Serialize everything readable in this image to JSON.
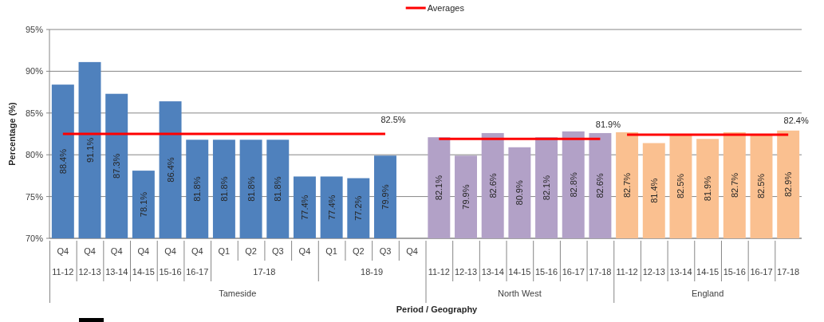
{
  "chart_data": {
    "type": "bar",
    "ylabel": "Percentage (%)",
    "annotations": [
      "Period / Geography"
    ],
    "categories": [
      [
        "Q4",
        "11-12",
        "Tameside"
      ],
      [
        "Q4",
        "12-13",
        null
      ],
      [
        "Q4",
        "13-14",
        null
      ],
      [
        "Q4",
        "14-15",
        null
      ],
      [
        "Q4",
        "15-16",
        null
      ],
      [
        "Q4",
        "16-17",
        null
      ],
      [
        "Q1",
        "17-18",
        null
      ],
      [
        "Q2",
        null,
        null
      ],
      [
        "Q3",
        null,
        null
      ],
      [
        "Q4",
        null,
        null
      ],
      [
        "Q1",
        "18-19",
        null
      ],
      [
        "Q2",
        null,
        null
      ],
      [
        "Q3",
        null,
        null
      ],
      [
        "Q4",
        null,
        null
      ],
      [
        null,
        "11-12",
        "North West"
      ],
      [
        null,
        "12-13",
        null
      ],
      [
        null,
        "13-14",
        null
      ],
      [
        null,
        "14-15",
        null
      ],
      [
        null,
        "15-16",
        null
      ],
      [
        null,
        "16-17",
        null
      ],
      [
        null,
        "17-18",
        null
      ],
      [
        null,
        "11-12",
        "England"
      ],
      [
        null,
        "12-13",
        null
      ],
      [
        null,
        "13-14",
        null
      ],
      [
        null,
        "14-15",
        null
      ],
      [
        null,
        "15-16",
        null
      ],
      [
        null,
        "16-17",
        null
      ],
      [
        null,
        "17-18",
        null
      ]
    ],
    "series": [
      {
        "colors": [
          "#4f81bd",
          "#4f81bd",
          "#4f81bd",
          "#4f81bd",
          "#4f81bd",
          "#4f81bd",
          "#4f81bd",
          "#4f81bd",
          "#4f81bd",
          "#4f81bd",
          "#4f81bd",
          "#4f81bd",
          "#4f81bd",
          null,
          "#b2a1c7",
          "#b2a1c7",
          "#b2a1c7",
          "#b2a1c7",
          "#b2a1c7",
          "#b2a1c7",
          "#b2a1c7",
          "#fac090",
          "#fac090",
          "#fac090",
          "#fac090",
          "#fac090",
          "#fac090",
          "#fac090"
        ],
        "values": [
          88.4,
          91.1,
          87.3,
          78.1,
          86.4,
          81.8,
          81.8,
          81.8,
          81.8,
          77.4,
          77.4,
          77.2,
          79.9,
          null,
          82.1,
          79.9,
          82.6,
          80.9,
          82.1,
          82.8,
          82.6,
          82.7,
          81.4,
          82.5,
          81.9,
          82.7,
          82.5,
          82.9
        ],
        "value_labels": [
          "88.4%",
          "91.1%",
          "87.3%",
          "78.1%",
          "86.4%",
          "81.8%",
          "81.8%",
          "81.8%",
          "81.8%",
          "77.4%",
          "77.4%",
          "77.2%",
          "79.9%",
          null,
          "82.1%",
          "79.9%",
          "82.6%",
          "80.9%",
          "82.1%",
          "82.8%",
          "82.6%",
          "82.7%",
          "81.4%",
          "82.5%",
          "81.9%",
          "82.7%",
          "82.5%",
          "82.9%"
        ]
      },
      {
        "type": "line",
        "name": "Averages",
        "color": "#ff0000",
        "values": [
          82.5,
          82.5,
          82.5,
          82.5,
          82.5,
          82.5,
          82.5,
          82.5,
          82.5,
          82.5,
          82.5,
          82.5,
          82.5,
          null,
          81.9,
          81.9,
          81.9,
          81.9,
          81.9,
          81.9,
          81.9,
          82.4,
          82.4,
          82.4,
          82.4,
          82.4,
          82.4,
          82.4
        ],
        "value_labels": [
          null,
          null,
          null,
          null,
          null,
          null,
          null,
          null,
          null,
          null,
          null,
          null,
          "82.5%",
          null,
          null,
          null,
          null,
          null,
          null,
          null,
          "81.9%",
          null,
          null,
          null,
          null,
          null,
          null,
          "82.4%"
        ]
      }
    ],
    "ylim": [
      70,
      95
    ],
    "yticks": [
      {
        "value": 70,
        "label": "70%"
      },
      {
        "value": 75,
        "label": "75%"
      },
      {
        "value": 80,
        "label": "80%"
      },
      {
        "value": 85,
        "label": "85%"
      },
      {
        "value": 90,
        "label": "90%"
      },
      {
        "value": 95,
        "label": "95%"
      }
    ],
    "grid": "y",
    "legend": "top",
    "marker": "none",
    "line_style": "solid"
  }
}
